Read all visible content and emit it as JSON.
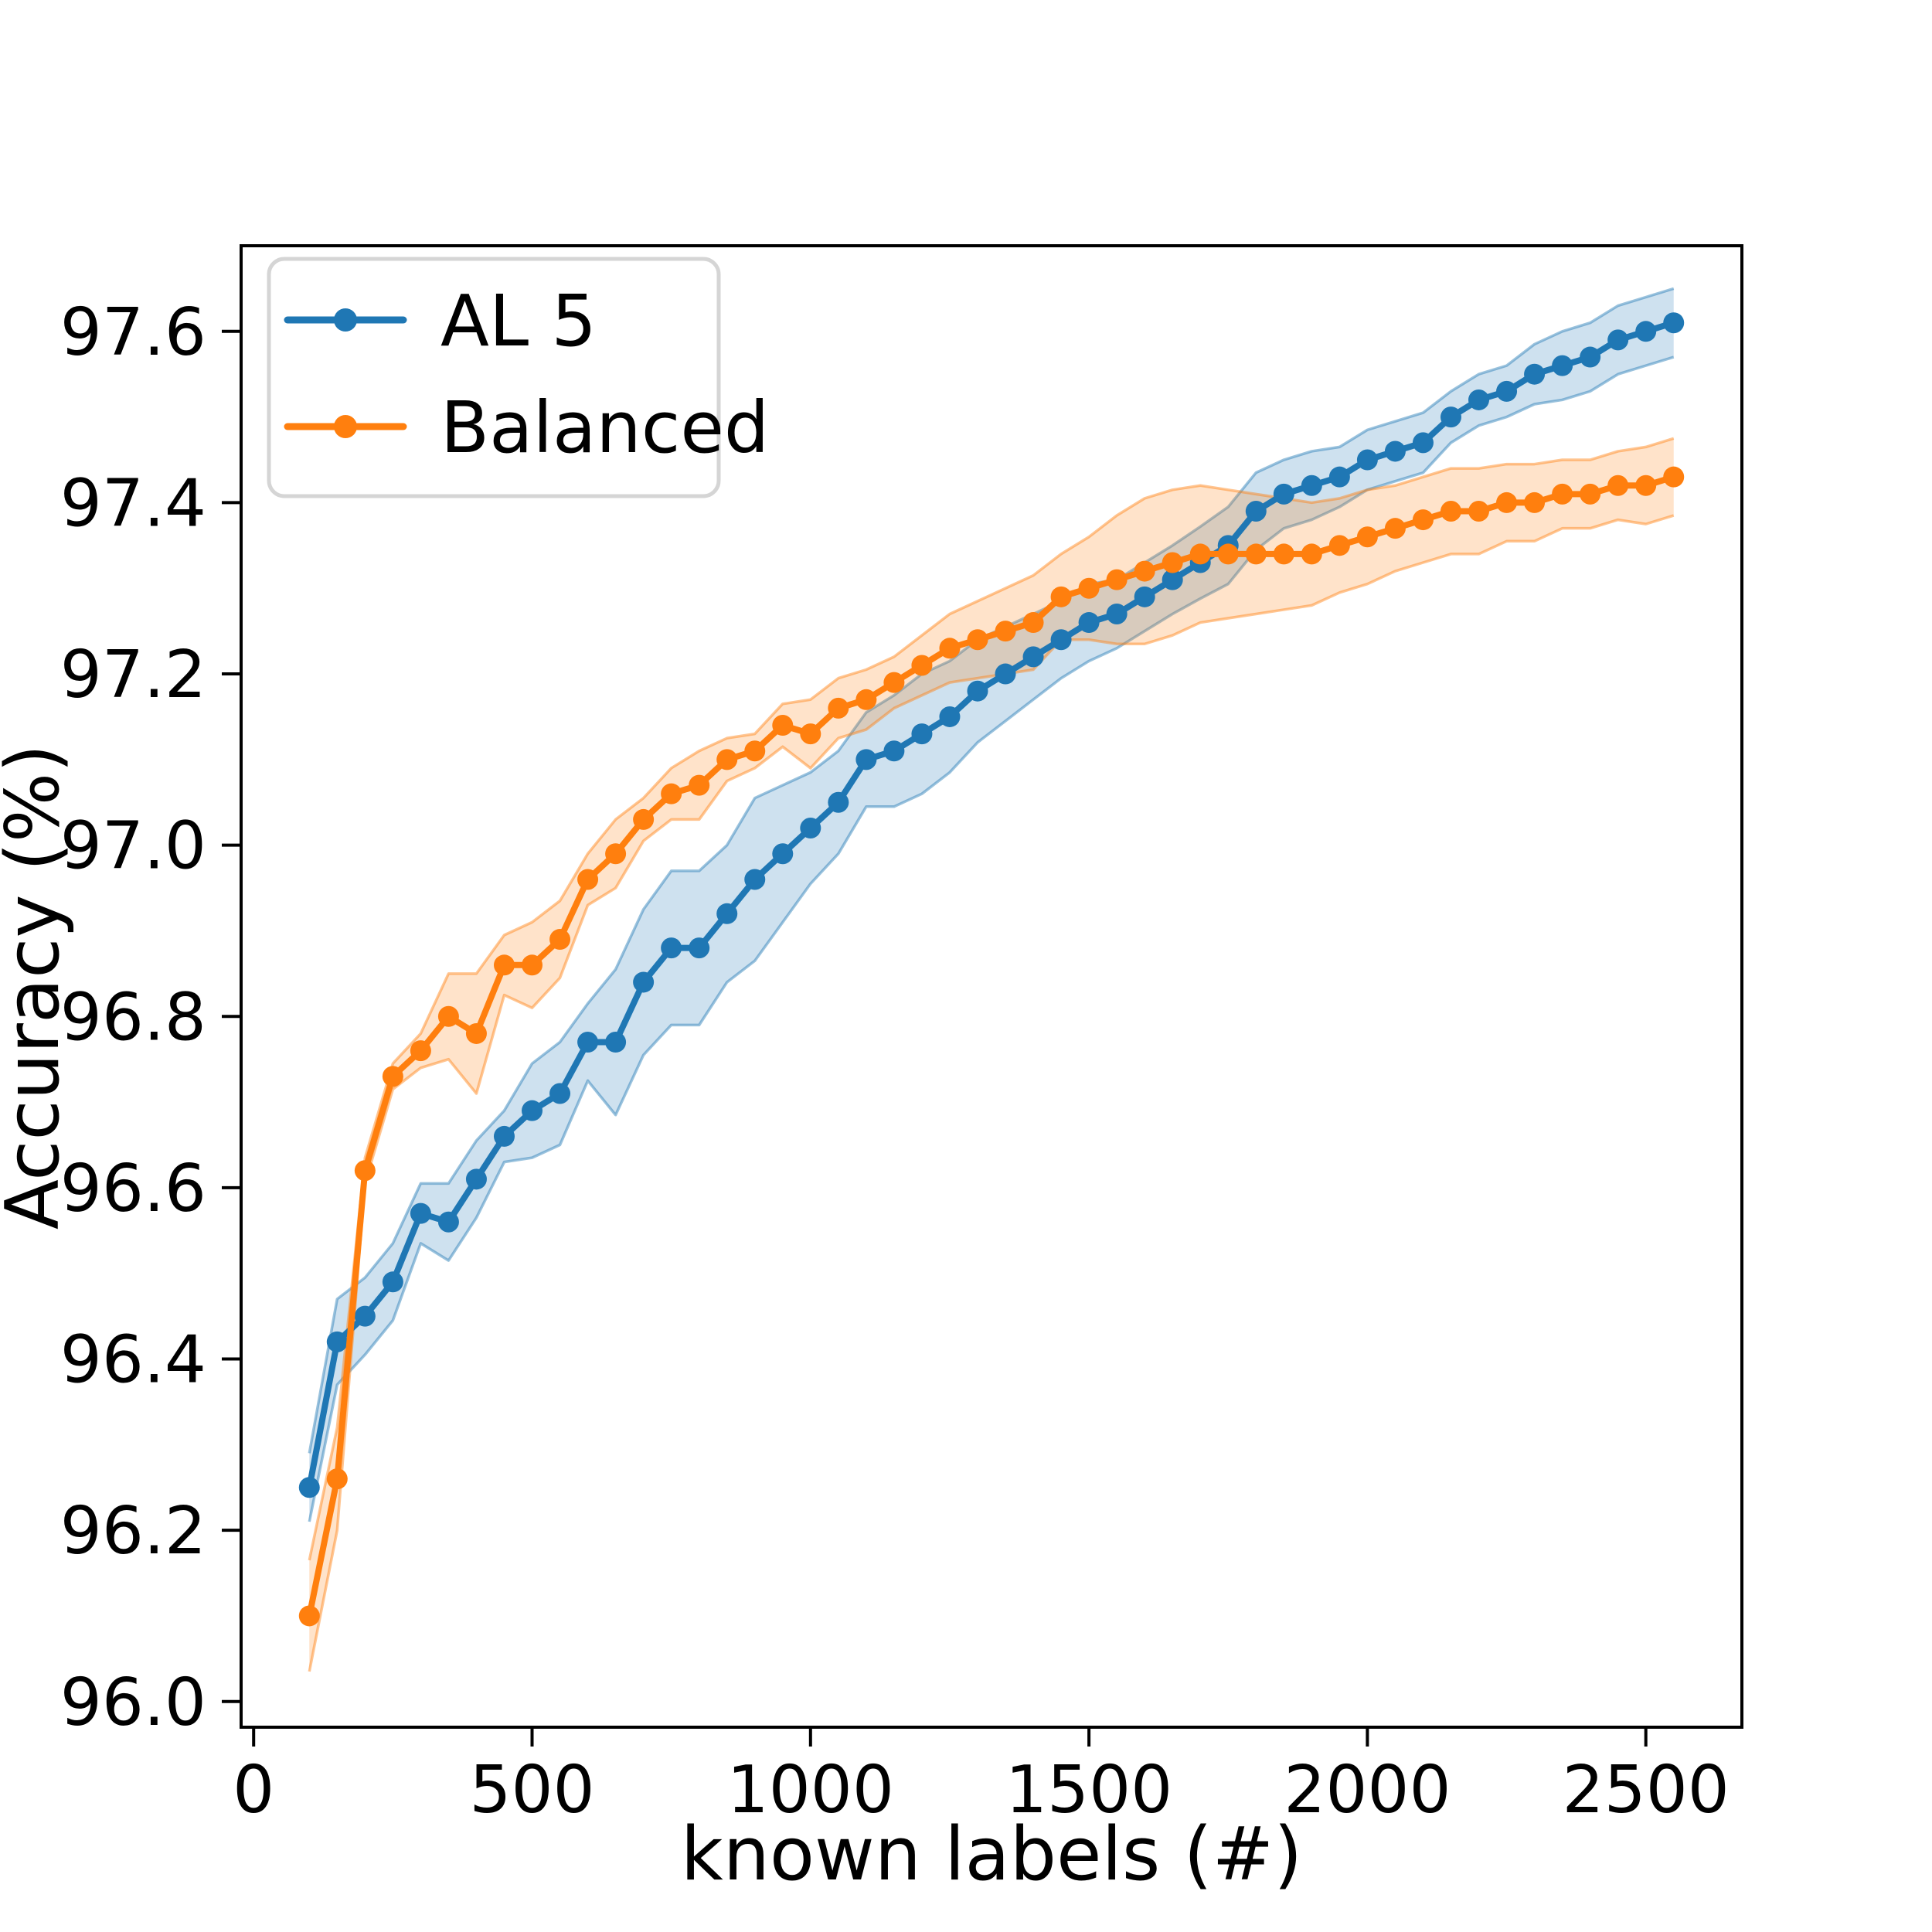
{
  "figure": {
    "xlabel": "known labels (#)",
    "ylabel": "Accuracy (%)",
    "legend": [
      {
        "label": "AL 5",
        "color": "#1f77b4"
      },
      {
        "label": "Balanced",
        "color": "#ff7f0e"
      }
    ],
    "background": "#ffffff",
    "spine_color": "#000000"
  },
  "chart_data": {
    "type": "line",
    "title": "",
    "xlabel": "known labels (#)",
    "ylabel": "Accuracy (%)",
    "grid": false,
    "legend_position": "upper left",
    "band_alpha": 0.22,
    "xlim": [
      -22.5,
      2672.5
    ],
    "ylim": [
      95.97,
      97.7
    ],
    "xticks": [
      0,
      500,
      1000,
      1500,
      2000,
      2500
    ],
    "yticks": [
      96.0,
      96.2,
      96.4,
      96.6,
      96.8,
      97.0,
      97.2,
      97.4,
      97.6
    ],
    "x": [
      100,
      150,
      200,
      250,
      300,
      350,
      400,
      450,
      500,
      550,
      600,
      650,
      700,
      750,
      800,
      850,
      900,
      950,
      1000,
      1050,
      1100,
      1150,
      1200,
      1250,
      1300,
      1350,
      1400,
      1450,
      1500,
      1550,
      1600,
      1650,
      1700,
      1750,
      1800,
      1850,
      1900,
      1950,
      2000,
      2050,
      2100,
      2150,
      2200,
      2250,
      2300,
      2350,
      2400,
      2450,
      2500,
      2550
    ],
    "series": [
      {
        "name": "AL 5",
        "color": "#1f77b4",
        "values": [
          96.25,
          96.42,
          96.45,
          96.49,
          96.57,
          96.56,
          96.61,
          96.66,
          96.69,
          96.71,
          96.77,
          96.77,
          96.84,
          96.88,
          96.88,
          96.92,
          96.96,
          96.99,
          97.02,
          97.05,
          97.1,
          97.11,
          97.13,
          97.15,
          97.18,
          97.2,
          97.22,
          97.24,
          97.26,
          97.27,
          97.29,
          97.31,
          97.33,
          97.35,
          97.39,
          97.41,
          97.42,
          97.43,
          97.45,
          97.46,
          97.47,
          97.5,
          97.52,
          97.53,
          97.55,
          97.56,
          97.57,
          97.59,
          97.6,
          97.61
        ],
        "err": [
          0.04,
          0.05,
          0.045,
          0.045,
          0.035,
          0.045,
          0.045,
          0.03,
          0.055,
          0.06,
          0.045,
          0.085,
          0.085,
          0.09,
          0.09,
          0.08,
          0.095,
          0.08,
          0.065,
          0.06,
          0.055,
          0.065,
          0.07,
          0.065,
          0.06,
          0.055,
          0.05,
          0.045,
          0.045,
          0.04,
          0.04,
          0.04,
          0.042,
          0.045,
          0.045,
          0.04,
          0.04,
          0.035,
          0.035,
          0.035,
          0.035,
          0.03,
          0.03,
          0.03,
          0.035,
          0.04,
          0.04,
          0.04,
          0.04,
          0.04
        ]
      },
      {
        "name": "Balanced",
        "color": "#ff7f0e",
        "values": [
          96.1,
          96.26,
          96.62,
          96.73,
          96.76,
          96.8,
          96.78,
          96.86,
          96.86,
          96.89,
          96.96,
          96.99,
          97.03,
          97.06,
          97.07,
          97.1,
          97.11,
          97.14,
          97.13,
          97.16,
          97.17,
          97.19,
          97.21,
          97.23,
          97.24,
          97.25,
          97.26,
          97.29,
          97.3,
          97.31,
          97.32,
          97.33,
          97.34,
          97.34,
          97.34,
          97.34,
          97.34,
          97.35,
          97.36,
          97.37,
          97.38,
          97.39,
          97.39,
          97.4,
          97.4,
          97.41,
          97.41,
          97.42,
          97.42,
          97.43
        ],
        "err": [
          0.065,
          0.06,
          0.015,
          0.015,
          0.02,
          0.05,
          0.07,
          0.035,
          0.05,
          0.045,
          0.03,
          0.04,
          0.025,
          0.03,
          0.04,
          0.025,
          0.02,
          0.025,
          0.04,
          0.035,
          0.035,
          0.03,
          0.035,
          0.04,
          0.045,
          0.05,
          0.055,
          0.05,
          0.06,
          0.075,
          0.085,
          0.085,
          0.08,
          0.075,
          0.07,
          0.065,
          0.06,
          0.055,
          0.055,
          0.05,
          0.05,
          0.05,
          0.05,
          0.045,
          0.045,
          0.04,
          0.04,
          0.04,
          0.045,
          0.045
        ]
      }
    ]
  }
}
